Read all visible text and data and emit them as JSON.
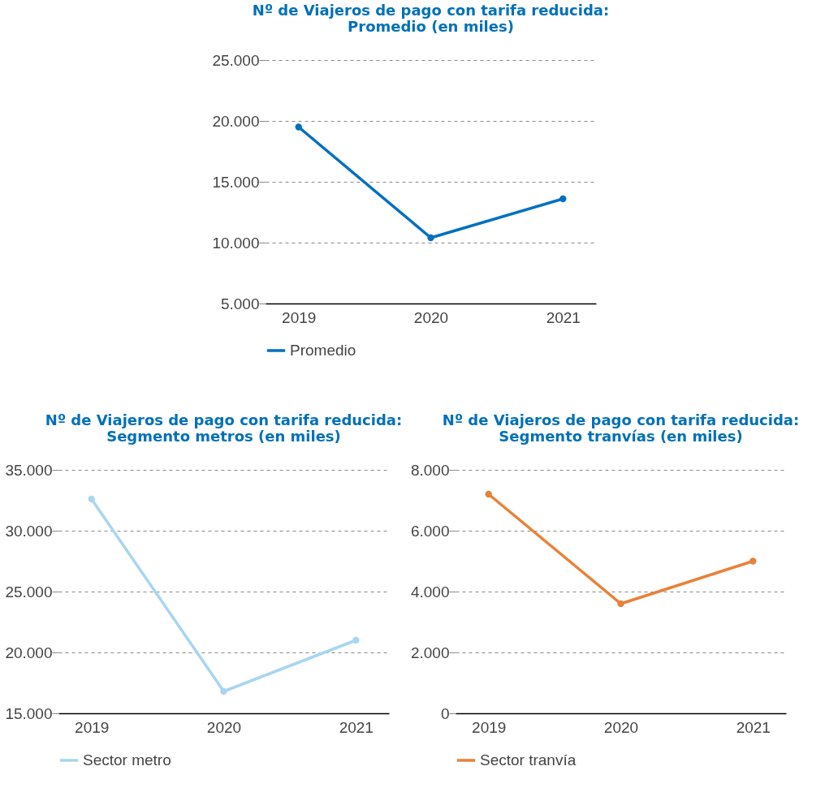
{
  "chart_data": [
    {
      "type": "line",
      "title": "Nº de Viajeros de pago con tarifa reducida:\nPromedio (en miles)",
      "categories": [
        "2019",
        "2020",
        "2021"
      ],
      "series": [
        {
          "name": "Promedio",
          "color": "#0070c0",
          "values": [
            19500,
            10400,
            13600
          ]
        }
      ],
      "ylim": [
        5000,
        25000
      ],
      "yticks": [
        {
          "value": 5000,
          "label": "5.000"
        },
        {
          "value": 10000,
          "label": "10.000"
        },
        {
          "value": 15000,
          "label": "15.000"
        },
        {
          "value": 20000,
          "label": "20.000"
        },
        {
          "value": 25000,
          "label": "25.000"
        }
      ],
      "grid": "y",
      "legend": "bottom",
      "marker": "circle",
      "line_style": "solid"
    },
    {
      "type": "line",
      "title": "Nº de Viajeros de pago con tarifa reducida:\nSegmento metros (en miles)",
      "categories": [
        "2019",
        "2020",
        "2021"
      ],
      "series": [
        {
          "name": "Sector metro",
          "color": "#a9d5f0",
          "values": [
            32600,
            16800,
            21000
          ]
        }
      ],
      "ylim": [
        15000,
        35000
      ],
      "yticks": [
        {
          "value": 15000,
          "label": "15.000"
        },
        {
          "value": 20000,
          "label": "20.000"
        },
        {
          "value": 25000,
          "label": "25.000"
        },
        {
          "value": 30000,
          "label": "30.000"
        },
        {
          "value": 35000,
          "label": "35.000"
        }
      ],
      "grid": "y",
      "legend": "bottom",
      "marker": "circle",
      "line_style": "solid"
    },
    {
      "type": "line",
      "title": "Nº de Viajeros de pago con tarifa reducida:\nSegmento tranvías (en miles)",
      "categories": [
        "2019",
        "2020",
        "2021"
      ],
      "series": [
        {
          "name": "Sector tranvía",
          "color": "#e8823a",
          "values": [
            7200,
            3600,
            5000
          ]
        }
      ],
      "ylim": [
        0,
        8000
      ],
      "yticks": [
        0,
        {
          "value": 2000,
          "label": "2.000"
        },
        {
          "value": 4000,
          "label": "4.000"
        },
        {
          "value": 6000,
          "label": "6.000"
        },
        {
          "value": 8000,
          "label": "8.000"
        }
      ],
      "grid": "y",
      "legend": "bottom",
      "marker": "circle",
      "line_style": "solid"
    }
  ]
}
